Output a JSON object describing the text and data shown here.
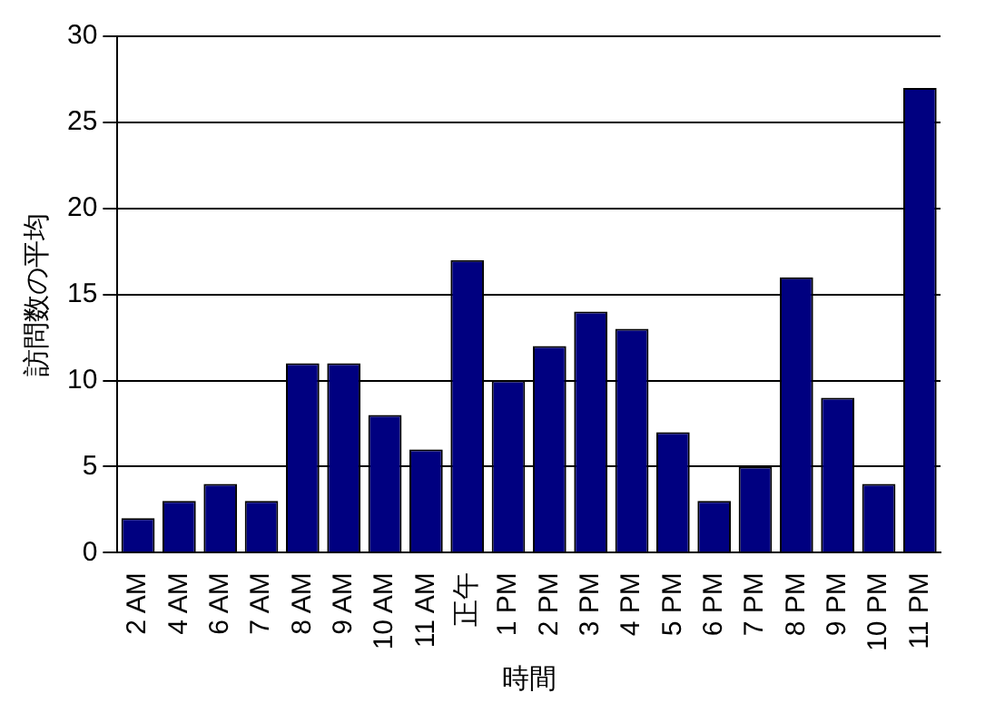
{
  "chart_data": {
    "type": "bar",
    "xlabel": "時間",
    "ylabel": "訪問数の平均",
    "categories": [
      "2 AM",
      "4 AM",
      "6 AM",
      "7 AM",
      "8 AM",
      "9 AM",
      "10 AM",
      "11 AM",
      "正午",
      "1 PM",
      "2 PM",
      "3 PM",
      "4 PM",
      "5 PM",
      "6 PM",
      "7 PM",
      "8 PM",
      "9 PM",
      "10 PM",
      "11 PM"
    ],
    "values": [
      2,
      3,
      4,
      3,
      11,
      11,
      8,
      6,
      17,
      10,
      12,
      14,
      13,
      7,
      3,
      5,
      16,
      9,
      4,
      27
    ],
    "color": "#000080",
    "ylim": [
      0,
      30
    ],
    "yticks": [
      0,
      5,
      10,
      15,
      20,
      25,
      30
    ],
    "grid": "y",
    "legend": false
  }
}
